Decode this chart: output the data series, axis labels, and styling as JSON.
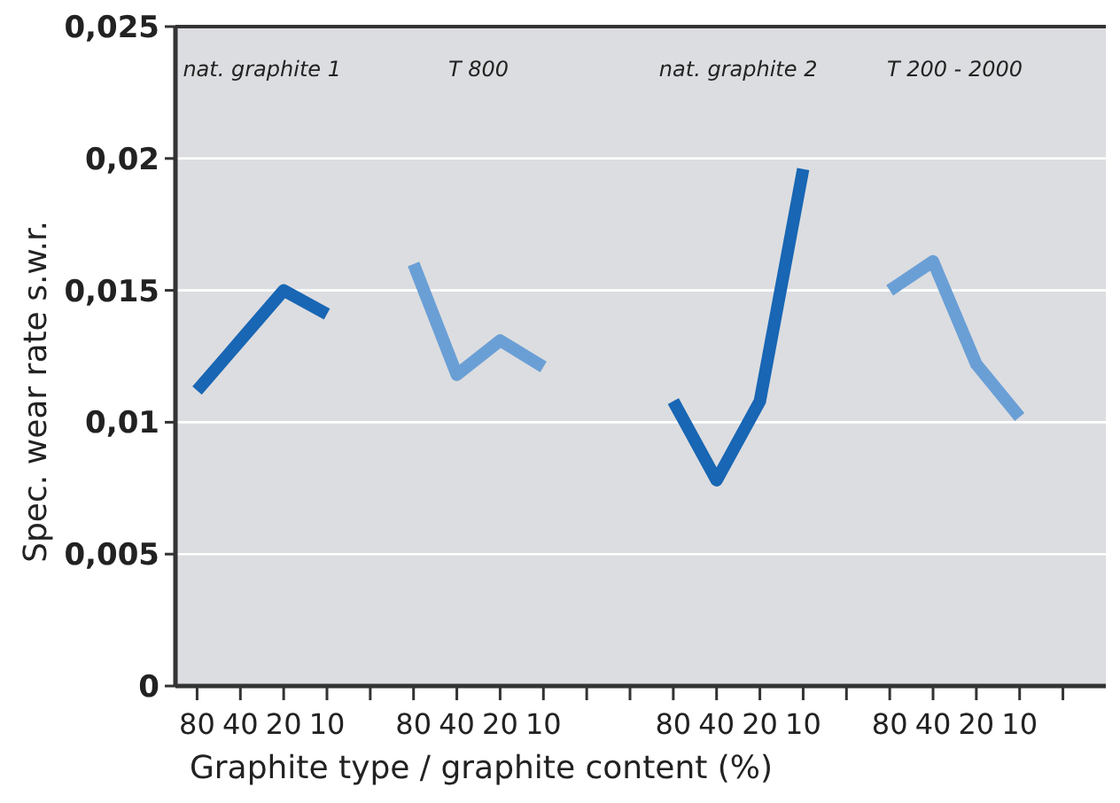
{
  "chart_data": {
    "type": "line",
    "xlabel": "Graphite type / graphite content (%)",
    "ylabel": "Spec. wear rate s.w.r.",
    "categories": [
      "80",
      "40",
      "20",
      "10",
      null,
      "80",
      "40",
      "20",
      "10",
      null,
      null,
      "80",
      "40",
      "20",
      "10",
      null,
      "80",
      "40",
      "20",
      "10",
      null
    ],
    "series": [
      {
        "color": "#1866b4",
        "values": [
          0.0112,
          0.0131,
          0.015,
          0.0141,
          null,
          null,
          null,
          null,
          null,
          null,
          null,
          null,
          null,
          null,
          null,
          null,
          null,
          null,
          null,
          null,
          null
        ]
      },
      {
        "color": "#6a9fd6",
        "values": [
          null,
          null,
          null,
          null,
          null,
          0.016,
          0.0118,
          0.0131,
          0.0121,
          null,
          null,
          null,
          null,
          null,
          null,
          null,
          null,
          null,
          null,
          null,
          null
        ]
      },
      {
        "color": "#1866b4",
        "values": [
          null,
          null,
          null,
          null,
          null,
          null,
          null,
          null,
          null,
          null,
          null,
          0.0108,
          0.0078,
          0.0108,
          0.0196,
          null,
          null,
          null,
          null,
          null,
          null
        ]
      },
      {
        "color": "#6a9fd6",
        "values": [
          null,
          null,
          null,
          null,
          null,
          null,
          null,
          null,
          null,
          null,
          null,
          null,
          null,
          null,
          null,
          null,
          0.015,
          0.0161,
          0.0122,
          0.0102,
          null
        ]
      }
    ],
    "annotations": [
      "nat. graphite 1",
      "T 800",
      "nat. graphite 2",
      "T 200 - 2000"
    ],
    "ylim": [
      0,
      0.025
    ],
    "yticks": [
      0,
      {
        "value": 0.005,
        "label": "0,005"
      },
      {
        "value": 0.01,
        "label": "0,01"
      },
      {
        "value": 0.015,
        "label": "0,015"
      },
      {
        "value": 0.02,
        "label": "0,02"
      },
      {
        "value": 0.025,
        "label": "0,025"
      }
    ],
    "grid": "y",
    "marker": "none",
    "line_style": "solid"
  }
}
